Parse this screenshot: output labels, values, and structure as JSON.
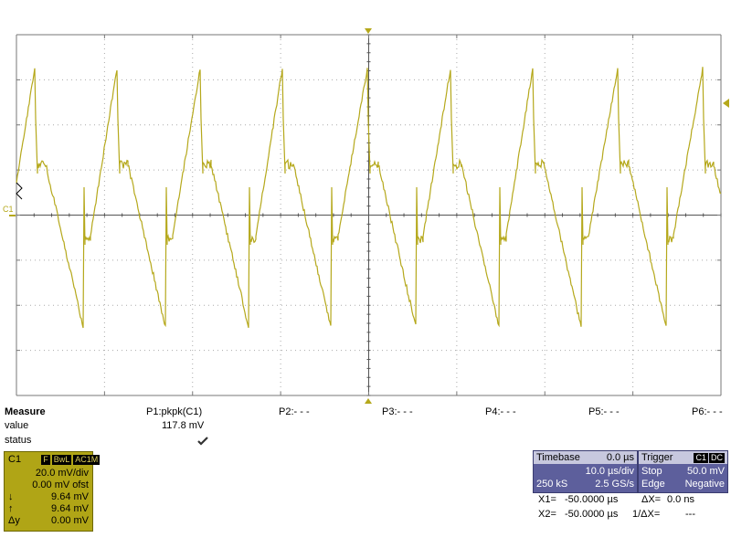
{
  "scope": {
    "channel_marker": "C1",
    "trace_color": "#b5a81b"
  },
  "measure": {
    "title": "Measure",
    "row_value": "value",
    "row_status": "status",
    "params": [
      "P1:pkpk(C1)",
      "P2:- - -",
      "P3:- - -",
      "P4:- - -",
      "P5:- - -",
      "P6:- - -"
    ],
    "p1_value": "117.8 mV",
    "p1_status_icon": "checkmark-icon"
  },
  "channel": {
    "name": "C1",
    "tags": [
      "F",
      "BwL",
      "AC1M"
    ],
    "vdiv": "20.0 mV/div",
    "offset": "0.00 mV ofst",
    "cursor_down_label": "↓",
    "cursor_down": "9.64 mV",
    "cursor_up_label": "↑",
    "cursor_up": "9.64 mV",
    "delta_label": "Δy",
    "delta": "0.00 mV"
  },
  "timebase": {
    "label": "Timebase",
    "delay": "0.0 µs",
    "tdiv": "10.0 µs/div",
    "samples": "250 kS",
    "rate": "2.5 GS/s"
  },
  "trigger": {
    "label": "Trigger",
    "tags": [
      "C1",
      "DC"
    ],
    "mode": "Stop",
    "level": "50.0 mV",
    "type": "Edge",
    "slope": "Negative"
  },
  "cursors": {
    "x1_label": "X1=",
    "x1": "-50.0000 µs",
    "x2_label": "X2=",
    "x2": "-50.0000 µs",
    "dx_label": "ΔX=",
    "dx": "0.0 ns",
    "inv_dx_label": "1/ΔX=",
    "inv_dx": "---"
  }
}
